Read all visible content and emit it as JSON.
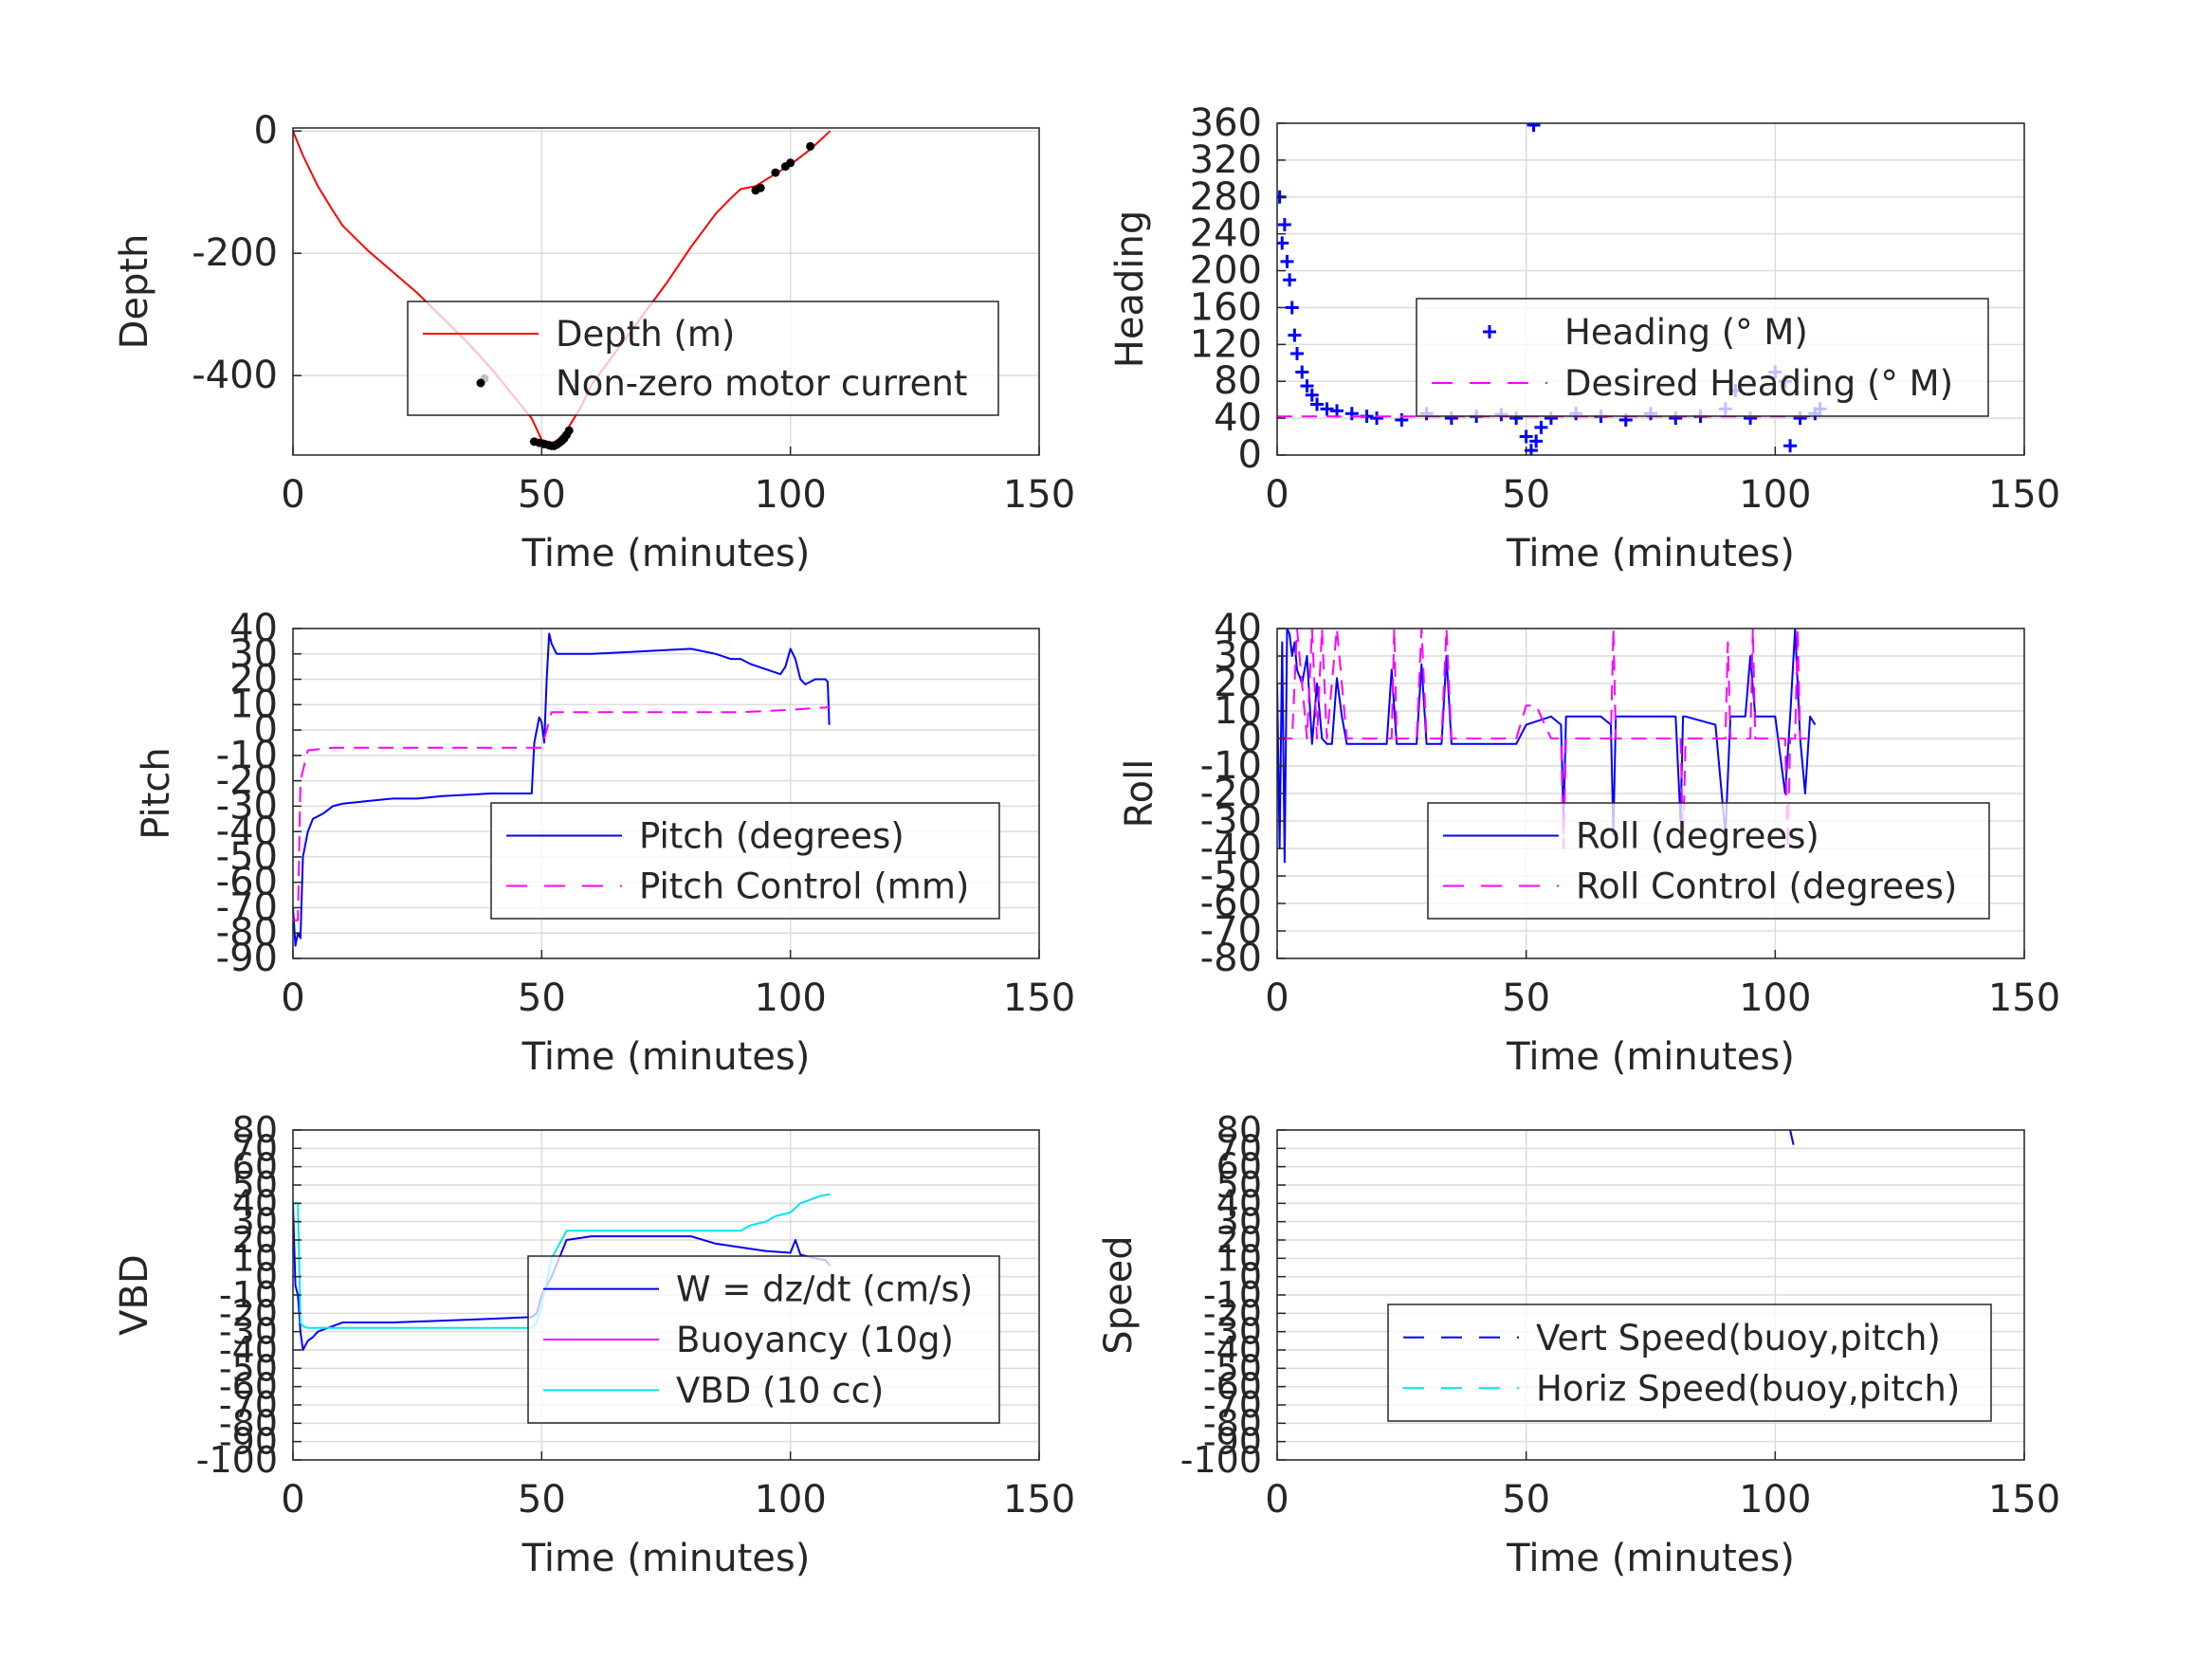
{
  "figure": {
    "background": "#ffffff",
    "grid_color": "#dcdcdc",
    "axis_color": "#262626"
  },
  "chart_data": [
    {
      "id": "depth",
      "type": "line",
      "xlabel": "Time (minutes)",
      "ylabel": "Depth",
      "xlim": [
        0,
        150
      ],
      "ylim": [
        -530,
        5
      ],
      "xticks": [
        0,
        50,
        100,
        150
      ],
      "xtick_labels": [
        "0",
        "50",
        "100",
        "150"
      ],
      "yticks": [
        0,
        -200,
        -400
      ],
      "ytick_labels": [
        "0",
        "-200",
        "-400"
      ],
      "grid": true,
      "legend_position": "center-right",
      "series": [
        {
          "name": "Depth (m)",
          "style": "line",
          "color": "#ff0000",
          "x": [
            0,
            2,
            5,
            8,
            10,
            15,
            20,
            25,
            30,
            35,
            40,
            45,
            48,
            50,
            52,
            53,
            55,
            58,
            60,
            65,
            70,
            75,
            80,
            85,
            88,
            90,
            93,
            95,
            100,
            104,
            108
          ],
          "y": [
            0,
            -40,
            -90,
            -130,
            -155,
            -195,
            -230,
            -265,
            -305,
            -345,
            -390,
            -440,
            -470,
            -505,
            -510,
            -507,
            -490,
            -450,
            -415,
            -360,
            -305,
            -250,
            -190,
            -135,
            -110,
            -95,
            -90,
            -80,
            -55,
            -30,
            0
          ]
        },
        {
          "name": "Non-zero motor current",
          "style": "dots",
          "color": "#000000",
          "x": [
            38.5,
            48.5,
            49.5,
            50.5,
            51.5,
            52,
            52.5,
            53,
            53.5,
            54,
            54.5,
            55,
            55.5,
            93,
            94,
            97,
            99,
            100,
            104
          ],
          "y": [
            -405,
            -508,
            -510,
            -512,
            -514,
            -515,
            -515,
            -513,
            -510,
            -507,
            -503,
            -497,
            -490,
            -97,
            -93,
            -68,
            -58,
            -52,
            -25
          ]
        }
      ]
    },
    {
      "id": "heading",
      "type": "scatter",
      "xlabel": "Time (minutes)",
      "ylabel": "Heading",
      "xlim": [
        0,
        150
      ],
      "ylim": [
        0,
        360
      ],
      "xticks": [
        0,
        50,
        100,
        150
      ],
      "xtick_labels": [
        "0",
        "50",
        "100",
        "150"
      ],
      "yticks": [
        0,
        40,
        80,
        120,
        160,
        200,
        240,
        280,
        320,
        360
      ],
      "ytick_labels": [
        "0",
        "40",
        "80",
        "120",
        "160",
        "200",
        "240",
        "280",
        "320",
        "360"
      ],
      "grid": true,
      "legend_position": "center-right",
      "series": [
        {
          "name": "Heading (° M)",
          "style": "plus",
          "color": "#0000ff",
          "x": [
            0.5,
            1,
            1.5,
            2,
            2.5,
            3,
            3.5,
            4,
            5,
            6,
            7,
            8,
            10,
            12,
            15,
            18,
            20,
            25,
            30,
            35,
            40,
            45,
            48,
            50,
            51,
            52,
            53,
            55,
            60,
            65,
            70,
            75,
            80,
            85,
            90,
            92,
            95,
            100,
            102,
            103,
            105,
            108,
            109,
            51.5
          ],
          "y": [
            280,
            230,
            250,
            210,
            190,
            160,
            130,
            110,
            90,
            75,
            65,
            55,
            50,
            48,
            45,
            42,
            40,
            38,
            45,
            40,
            42,
            44,
            40,
            20,
            5,
            15,
            30,
            40,
            45,
            42,
            38,
            45,
            40,
            42,
            50,
            70,
            40,
            90,
            80,
            10,
            40,
            45,
            50,
            358
          ]
        },
        {
          "name": "Desired Heading (° M)",
          "style": "dashed",
          "color": "#ff00ff",
          "x": [
            0,
            109
          ],
          "y": [
            42,
            42
          ]
        }
      ]
    },
    {
      "id": "pitch",
      "type": "line",
      "xlabel": "Time (minutes)",
      "ylabel": "Pitch",
      "xlim": [
        0,
        150
      ],
      "ylim": [
        -90,
        40
      ],
      "xticks": [
        0,
        50,
        100,
        150
      ],
      "xtick_labels": [
        "0",
        "50",
        "100",
        "150"
      ],
      "yticks": [
        -90,
        -80,
        -70,
        -60,
        -50,
        -40,
        -30,
        -20,
        -10,
        0,
        10,
        20,
        30,
        40
      ],
      "ytick_labels": [
        "-90",
        "-80",
        "-70",
        "-60",
        "-50",
        "-40",
        "-30",
        "-20",
        "-10",
        "0",
        "10",
        "20",
        "30",
        "40"
      ],
      "grid": true,
      "legend_position": "lower-right",
      "series": [
        {
          "name": "Pitch (degrees)",
          "style": "line",
          "color": "#0000ff",
          "x": [
            0,
            0.5,
            1,
            1.5,
            2,
            3,
            4,
            6,
            8,
            10,
            15,
            20,
            25,
            30,
            40,
            48,
            48.5,
            49,
            49.5,
            50,
            50.5,
            51,
            51.5,
            52,
            53,
            55,
            60,
            70,
            80,
            85,
            88,
            90,
            92,
            95,
            98,
            99,
            100,
            101,
            102,
            103,
            105,
            107,
            107.5,
            107.8
          ],
          "y": [
            -70,
            -85,
            -80,
            -82,
            -50,
            -40,
            -35,
            -33,
            -30,
            -29,
            -28,
            -27,
            -27,
            -26,
            -25,
            -25,
            -5,
            0,
            5,
            3,
            -5,
            20,
            38,
            34,
            30,
            30,
            30,
            31,
            32,
            30,
            28,
            28,
            26,
            24,
            22,
            25,
            32,
            28,
            20,
            18,
            20,
            20,
            19,
            2
          ]
        },
        {
          "name": "Pitch Control (mm)",
          "style": "dashed",
          "color": "#ff00ff",
          "x": [
            0,
            1,
            1.5,
            3,
            8,
            20,
            30,
            40,
            50,
            52,
            60,
            80,
            90,
            100,
            108
          ],
          "y": [
            -75,
            -75,
            -20,
            -8,
            -7,
            -7,
            -7,
            -7,
            -7,
            7,
            7,
            7,
            7,
            8,
            9
          ]
        }
      ]
    },
    {
      "id": "roll",
      "type": "line",
      "xlabel": "Time (minutes)",
      "ylabel": "Roll",
      "xlim": [
        0,
        150
      ],
      "ylim": [
        -80,
        40
      ],
      "xticks": [
        0,
        50,
        100,
        150
      ],
      "xtick_labels": [
        "0",
        "50",
        "100",
        "150"
      ],
      "yticks": [
        -80,
        -70,
        -60,
        -50,
        -40,
        -30,
        -20,
        -10,
        0,
        10,
        20,
        30,
        40
      ],
      "ytick_labels": [
        "-80",
        "-70",
        "-60",
        "-50",
        "-40",
        "-30",
        "-20",
        "-10",
        "0",
        "10",
        "20",
        "30",
        "40"
      ],
      "grid": true,
      "legend_position": "lower-right",
      "series": [
        {
          "name": "Roll (degrees)",
          "style": "line",
          "color": "#0000ff",
          "x": [
            0,
            0.5,
            1,
            1.5,
            2,
            2.5,
            3,
            3.5,
            4,
            5,
            6,
            7,
            8,
            9,
            10,
            11,
            12,
            13,
            14,
            20,
            22,
            23,
            24,
            25,
            28,
            29,
            30,
            33,
            34,
            35,
            40,
            48,
            50,
            55,
            57,
            57.5,
            58,
            60,
            65,
            67,
            67.5,
            68,
            70,
            80,
            81,
            81.5,
            82,
            88,
            90,
            91,
            92,
            94,
            95,
            96,
            98,
            100,
            102,
            103,
            104,
            105,
            106,
            107,
            108
          ],
          "y": [
            20,
            -40,
            35,
            -45,
            40,
            38,
            30,
            35,
            25,
            20,
            30,
            -2,
            20,
            0,
            -2,
            -2,
            22,
            8,
            -2,
            -2,
            -2,
            25,
            -2,
            -2,
            -2,
            27,
            -2,
            -2,
            30,
            -2,
            -2,
            -2,
            5,
            8,
            5,
            -30,
            8,
            8,
            8,
            5,
            -35,
            8,
            8,
            8,
            -30,
            8,
            8,
            5,
            -35,
            8,
            8,
            8,
            30,
            8,
            8,
            8,
            -20,
            8,
            40,
            0,
            -20,
            8,
            5
          ]
        },
        {
          "name": "Roll Control (degrees)",
          "style": "dashed",
          "color": "#ff00ff",
          "x": [
            0,
            3,
            4,
            6,
            7,
            8,
            9,
            10,
            12,
            14,
            20,
            23,
            23.5,
            24,
            28,
            29,
            30,
            33,
            34,
            35,
            48,
            50,
            52,
            55,
            57,
            57.5,
            58,
            65,
            67,
            67.5,
            68,
            80,
            81,
            81.5,
            82,
            90,
            90.5,
            91,
            95,
            95.5,
            96,
            102,
            102.5,
            103,
            104,
            104.5,
            105,
            108
          ],
          "y": [
            0,
            0,
            40,
            0,
            40,
            0,
            40,
            0,
            40,
            0,
            0,
            0,
            40,
            0,
            0,
            40,
            0,
            0,
            40,
            0,
            0,
            12,
            12,
            0,
            0,
            -40,
            0,
            0,
            0,
            40,
            0,
            0,
            0,
            -40,
            0,
            0,
            35,
            0,
            0,
            40,
            0,
            0,
            -40,
            0,
            0,
            40,
            0,
            0
          ]
        }
      ]
    },
    {
      "id": "vbd",
      "type": "line",
      "xlabel": "Time (minutes)",
      "ylabel": "VBD",
      "xlim": [
        0,
        150
      ],
      "ylim": [
        -100,
        80
      ],
      "xticks": [
        0,
        50,
        100,
        150
      ],
      "xtick_labels": [
        "0",
        "50",
        "100",
        "150"
      ],
      "yticks": [
        -100,
        -90,
        -80,
        -70,
        -60,
        -50,
        -40,
        -30,
        -20,
        -10,
        0,
        10,
        20,
        30,
        40,
        50,
        60,
        70,
        80
      ],
      "ytick_labels": [
        "-100",
        "-90",
        "-80",
        "-70",
        "-60",
        "-50",
        "-40",
        "-30",
        "-20",
        "-10",
        "0",
        "10",
        "20",
        "30",
        "40",
        "50",
        "60",
        "70",
        "80"
      ],
      "grid": true,
      "legend_position": "lower-right",
      "series": [
        {
          "name": "W = dz/dt (cm/s)",
          "style": "line",
          "color": "#0000ff",
          "x": [
            0,
            0.5,
            1,
            1.5,
            2,
            3,
            4,
            5,
            7,
            10,
            15,
            20,
            30,
            40,
            48,
            49,
            50,
            52,
            55,
            60,
            70,
            80,
            85,
            90,
            95,
            100,
            101,
            102,
            105,
            107,
            108
          ],
          "y": [
            40,
            -5,
            -10,
            -30,
            -40,
            -35,
            -33,
            -30,
            -28,
            -25,
            -25,
            -25,
            -24,
            -23,
            -22,
            -20,
            -10,
            0,
            20,
            22,
            22,
            22,
            18,
            16,
            14,
            13,
            20,
            12,
            10,
            9,
            6
          ]
        },
        {
          "name": "Buoyancy (10g)",
          "style": "line",
          "color": "#ff00ff",
          "x": [],
          "y": []
        },
        {
          "name": "VBD (10 cc)",
          "style": "line",
          "color": "#00e5ee",
          "x": [
            0,
            1,
            1.5,
            2,
            3,
            10,
            20,
            30,
            40,
            48,
            49,
            50,
            52,
            55,
            57,
            60,
            70,
            80,
            90,
            92,
            95,
            97,
            100,
            102,
            104,
            106,
            108
          ],
          "y": [
            40,
            40,
            -25,
            -27,
            -28,
            -28,
            -28,
            -28,
            -28,
            -28,
            -25,
            -15,
            10,
            25,
            25,
            25,
            25,
            25,
            25,
            28,
            30,
            33,
            35,
            40,
            42,
            44,
            45
          ]
        }
      ]
    },
    {
      "id": "speed",
      "type": "line",
      "xlabel": "Time (minutes)",
      "ylabel": "Speed",
      "xlim": [
        0,
        150
      ],
      "ylim": [
        -100,
        80
      ],
      "xticks": [
        0,
        50,
        100,
        150
      ],
      "xtick_labels": [
        "0",
        "50",
        "100",
        "150"
      ],
      "yticks": [
        -100,
        -90,
        -80,
        -70,
        -60,
        -50,
        -40,
        -30,
        -20,
        -10,
        0,
        10,
        20,
        30,
        40,
        50,
        60,
        70,
        80
      ],
      "ytick_labels": [
        "-100",
        "-90",
        "-80",
        "-70",
        "-60",
        "-50",
        "-40",
        "-30",
        "-20",
        "-10",
        "0",
        "10",
        "20",
        "30",
        "40",
        "50",
        "60",
        "70",
        "80"
      ],
      "grid": true,
      "legend_position": "lower-right",
      "series": [
        {
          "name": "Vert Speed(buoy,pitch)",
          "style": "dashed",
          "color": "#0000ff",
          "x": [
            103,
            104
          ],
          "y": [
            80,
            68
          ]
        },
        {
          "name": "Horiz Speed(buoy,pitch)",
          "style": "dashed",
          "color": "#00e5ee",
          "x": [],
          "y": []
        }
      ]
    }
  ]
}
